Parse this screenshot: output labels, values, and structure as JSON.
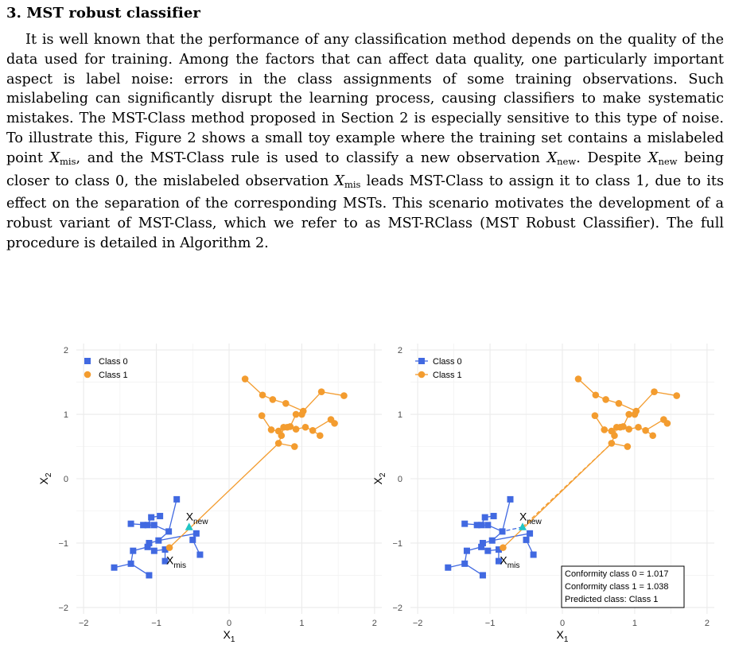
{
  "section": {
    "heading": "3. MST robust classifier"
  },
  "paragraph": {
    "s1": "It is well known that the performance of any classification method depends on the quality of the data used for training. Among the factors that can affect data quality, one particularly important aspect is label noise: errors in the class assignments of some training observations. Such mislabeling can significantly disrupt the learning process, causing classifiers to make systematic mistakes. The MST-Class method proposed in Section 2 is especially sensitive to this type of noise. To illustrate this, Figure 2 shows a small toy example where the training set contains a mislabeled point ",
    "xmis_sym": "X",
    "xmis_sub": "mis",
    "s2": ", and the MST-Class rule is used to classify a new observation ",
    "xnew_sym": "X",
    "xnew_sub": "new",
    "s3": ". Despite ",
    "xnew2_sym": "X",
    "xnew2_sub": "new",
    "s4": " being closer to class 0, the mislabeled observation ",
    "xmis2_sym": "X",
    "xmis2_sub": "mis",
    "s5": " leads MST-Class to assign it to class 1, due to its effect on the separation of the corresponding MSTs. This scenario motivates the development of a robust variant of MST-Class, which we refer to as MST-RClass (MST Robust Classifier). The full procedure is detailed in Algorithm 2."
  },
  "colors": {
    "class0": "#4169E1",
    "class1": "#F39C2F",
    "new_point": "#20C5C5",
    "grid": "#EBEBEB"
  },
  "chart_data": [
    {
      "type": "scatter",
      "xlabel_main": "X",
      "xlabel_sub": "1",
      "ylabel_main": "X",
      "ylabel_sub": "2",
      "xlim": [
        -2.1,
        2.1
      ],
      "ylim": [
        -2.1,
        2.1
      ],
      "xticks": [
        -2,
        -1,
        0,
        1,
        2
      ],
      "yticks": [
        -2,
        -1,
        0,
        1,
        2
      ],
      "xtick_labels": [
        "−2",
        "−1",
        "0",
        "1",
        "2"
      ],
      "ytick_labels": [
        "−2",
        "−1",
        "0",
        "1",
        "2"
      ],
      "grid": true,
      "legend_position": "top-left",
      "legend": [
        "Class 0",
        "Class 1"
      ],
      "series": [
        {
          "name": "Class 0",
          "marker": "square",
          "points": [
            [
              -0.72,
              -0.32
            ],
            [
              -0.95,
              -0.58
            ],
            [
              -1.07,
              -0.6
            ],
            [
              -1.12,
              -0.72
            ],
            [
              -1.35,
              -0.7
            ],
            [
              -1.18,
              -0.72
            ],
            [
              -1.03,
              -0.72
            ],
            [
              -0.83,
              -0.82
            ],
            [
              -0.97,
              -0.96
            ],
            [
              -1.1,
              -1.0
            ],
            [
              -1.12,
              -1.06
            ],
            [
              -1.32,
              -1.12
            ],
            [
              -1.03,
              -1.12
            ],
            [
              -0.88,
              -1.1
            ],
            [
              -0.88,
              -1.28
            ],
            [
              -1.35,
              -1.32
            ],
            [
              -1.58,
              -1.38
            ],
            [
              -1.1,
              -1.5
            ],
            [
              -0.45,
              -0.85
            ],
            [
              -0.5,
              -0.95
            ],
            [
              -0.4,
              -1.18
            ]
          ],
          "edges": [
            [
              0,
              7
            ],
            [
              1,
              2
            ],
            [
              2,
              3
            ],
            [
              3,
              4
            ],
            [
              3,
              6
            ],
            [
              6,
              7
            ],
            [
              7,
              8
            ],
            [
              8,
              9
            ],
            [
              9,
              10
            ],
            [
              10,
              11
            ],
            [
              10,
              12
            ],
            [
              12,
              13
            ],
            [
              13,
              14
            ],
            [
              11,
              15
            ],
            [
              15,
              16
            ],
            [
              15,
              17
            ],
            [
              8,
              18
            ],
            [
              18,
              19
            ],
            [
              19,
              20
            ]
          ]
        },
        {
          "name": "Class 1",
          "marker": "circle",
          "points": [
            [
              0.22,
              1.55
            ],
            [
              0.46,
              1.3
            ],
            [
              0.6,
              1.23
            ],
            [
              0.78,
              1.17
            ],
            [
              1.02,
              1.05
            ],
            [
              1.27,
              1.35
            ],
            [
              1.58,
              1.29
            ],
            [
              1.0,
              1.0
            ],
            [
              0.92,
              1.0
            ],
            [
              0.45,
              0.98
            ],
            [
              0.75,
              0.8
            ],
            [
              0.58,
              0.76
            ],
            [
              0.68,
              0.74
            ],
            [
              0.84,
              0.81
            ],
            [
              0.92,
              0.77
            ],
            [
              1.05,
              0.8
            ],
            [
              1.15,
              0.75
            ],
            [
              1.4,
              0.92
            ],
            [
              1.45,
              0.86
            ],
            [
              1.25,
              0.67
            ],
            [
              0.68,
              0.55
            ],
            [
              0.9,
              0.5
            ],
            [
              0.8,
              0.8
            ],
            [
              0.72,
              0.67
            ]
          ],
          "edges": [
            [
              0,
              1
            ],
            [
              1,
              2
            ],
            [
              2,
              3
            ],
            [
              3,
              4
            ],
            [
              4,
              7
            ],
            [
              7,
              8
            ],
            [
              5,
              6
            ],
            [
              4,
              5
            ],
            [
              8,
              13
            ],
            [
              9,
              11
            ],
            [
              11,
              12
            ],
            [
              12,
              10
            ],
            [
              10,
              22
            ],
            [
              22,
              13
            ],
            [
              13,
              14
            ],
            [
              14,
              15
            ],
            [
              15,
              16
            ],
            [
              16,
              17
            ],
            [
              17,
              18
            ],
            [
              16,
              19
            ],
            [
              10,
              23
            ],
            [
              23,
              20
            ],
            [
              20,
              21
            ]
          ]
        }
      ],
      "new_point": {
        "x": -0.55,
        "y": -0.75,
        "label_main": "X",
        "label_sub": "new"
      },
      "mislabeled_point": {
        "x": -0.82,
        "y": -1.07,
        "label_main": "X",
        "label_sub": "mis"
      },
      "cross_edge": {
        "from": "X_mis",
        "to": [
          0.68,
          0.55
        ]
      }
    },
    {
      "type": "scatter",
      "xlabel_main": "X",
      "xlabel_sub": "1",
      "ylabel_main": "X",
      "ylabel_sub": "2",
      "xlim": [
        -2.1,
        2.1
      ],
      "ylim": [
        -2.1,
        2.1
      ],
      "xticks": [
        -2,
        -1,
        0,
        1,
        2
      ],
      "yticks": [
        -2,
        -1,
        0,
        1,
        2
      ],
      "xtick_labels": [
        "−2",
        "−1",
        "0",
        "1",
        "2"
      ],
      "ytick_labels": [
        "−2",
        "−1",
        "0",
        "1",
        "2"
      ],
      "grid": true,
      "legend_position": "top-left",
      "legend": [
        "Class 0",
        "Class 1"
      ],
      "series": [
        {
          "name": "Class 0",
          "marker": "square",
          "points": [
            [
              -0.72,
              -0.32
            ],
            [
              -0.95,
              -0.58
            ],
            [
              -1.07,
              -0.6
            ],
            [
              -1.12,
              -0.72
            ],
            [
              -1.35,
              -0.7
            ],
            [
              -1.18,
              -0.72
            ],
            [
              -1.03,
              -0.72
            ],
            [
              -0.83,
              -0.82
            ],
            [
              -0.97,
              -0.96
            ],
            [
              -1.1,
              -1.0
            ],
            [
              -1.12,
              -1.06
            ],
            [
              -1.32,
              -1.12
            ],
            [
              -1.03,
              -1.12
            ],
            [
              -0.88,
              -1.1
            ],
            [
              -0.88,
              -1.28
            ],
            [
              -1.35,
              -1.32
            ],
            [
              -1.58,
              -1.38
            ],
            [
              -1.1,
              -1.5
            ],
            [
              -0.45,
              -0.85
            ],
            [
              -0.5,
              -0.95
            ],
            [
              -0.4,
              -1.18
            ]
          ],
          "edges": [
            [
              0,
              7
            ],
            [
              1,
              2
            ],
            [
              2,
              3
            ],
            [
              3,
              4
            ],
            [
              3,
              6
            ],
            [
              6,
              7
            ],
            [
              7,
              8
            ],
            [
              8,
              9
            ],
            [
              9,
              10
            ],
            [
              10,
              11
            ],
            [
              10,
              12
            ],
            [
              12,
              13
            ],
            [
              13,
              14
            ],
            [
              11,
              15
            ],
            [
              15,
              16
            ],
            [
              15,
              17
            ],
            [
              8,
              18
            ],
            [
              18,
              19
            ],
            [
              19,
              20
            ]
          ]
        },
        {
          "name": "Class 1",
          "marker": "circle",
          "points": [
            [
              0.22,
              1.55
            ],
            [
              0.46,
              1.3
            ],
            [
              0.6,
              1.23
            ],
            [
              0.78,
              1.17
            ],
            [
              1.02,
              1.05
            ],
            [
              1.27,
              1.35
            ],
            [
              1.58,
              1.29
            ],
            [
              1.0,
              1.0
            ],
            [
              0.92,
              1.0
            ],
            [
              0.45,
              0.98
            ],
            [
              0.75,
              0.8
            ],
            [
              0.58,
              0.76
            ],
            [
              0.68,
              0.74
            ],
            [
              0.84,
              0.81
            ],
            [
              0.92,
              0.77
            ],
            [
              1.05,
              0.8
            ],
            [
              1.15,
              0.75
            ],
            [
              1.4,
              0.92
            ],
            [
              1.45,
              0.86
            ],
            [
              1.25,
              0.67
            ],
            [
              0.68,
              0.55
            ],
            [
              0.9,
              0.5
            ],
            [
              0.8,
              0.8
            ],
            [
              0.72,
              0.67
            ]
          ],
          "edges": [
            [
              0,
              1
            ],
            [
              1,
              2
            ],
            [
              2,
              3
            ],
            [
              3,
              4
            ],
            [
              4,
              7
            ],
            [
              7,
              8
            ],
            [
              5,
              6
            ],
            [
              4,
              5
            ],
            [
              8,
              13
            ],
            [
              9,
              11
            ],
            [
              11,
              12
            ],
            [
              12,
              10
            ],
            [
              10,
              22
            ],
            [
              22,
              13
            ],
            [
              13,
              14
            ],
            [
              14,
              15
            ],
            [
              15,
              16
            ],
            [
              16,
              17
            ],
            [
              17,
              18
            ],
            [
              16,
              19
            ],
            [
              10,
              23
            ],
            [
              23,
              20
            ],
            [
              20,
              21
            ]
          ]
        }
      ],
      "new_point": {
        "x": -0.55,
        "y": -0.75,
        "label_main": "X",
        "label_sub": "new"
      },
      "mislabeled_point": {
        "x": -0.82,
        "y": -1.07,
        "label_main": "X",
        "label_sub": "mis"
      },
      "cross_edge": {
        "from": "X_mis",
        "to": [
          0.68,
          0.55
        ]
      },
      "new_edges": [
        {
          "from": "X_new",
          "to": [
            0.68,
            0.55
          ],
          "class": "Class 1",
          "dashed": true
        },
        {
          "from": "X_new",
          "to": [
            -0.83,
            -0.82
          ],
          "class": "Class 0",
          "dashed": true
        }
      ],
      "annotation": {
        "lines": [
          "Conformity class 0 = 1.017",
          "Conformity class 1 = 1.038",
          "Predicted class: Class 1"
        ],
        "position": "bottom-right"
      }
    }
  ]
}
